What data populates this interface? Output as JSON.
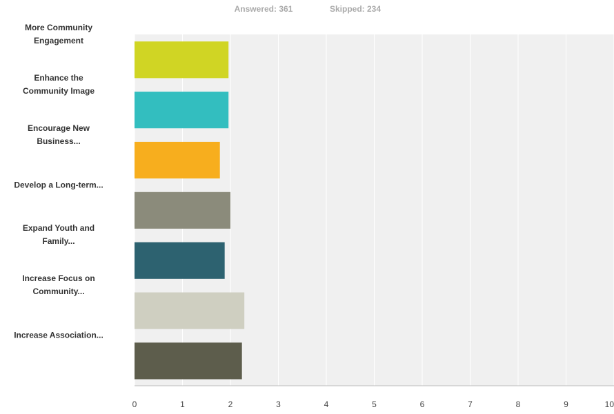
{
  "chart_data": {
    "type": "bar",
    "orientation": "horizontal",
    "annotations": [
      "Answered: 361",
      "Skipped: 234"
    ],
    "categories": [
      "More Community Engagement",
      "Enhance the Community Image",
      "Encourage New Business...",
      "Develop a Long-term...",
      "Expand Youth and Family...",
      "Increase Focus on Community...",
      "Increase Association..."
    ],
    "values": [
      1.96,
      1.96,
      1.78,
      2.0,
      1.88,
      2.29,
      2.24
    ],
    "colors": [
      "#d0d524",
      "#33bebf",
      "#f7ae1e",
      "#8b8b7b",
      "#2d6270",
      "#cfcfc1",
      "#5d5d4c"
    ],
    "xlim": [
      0,
      10
    ],
    "xticks": [
      0,
      1,
      2,
      3,
      4,
      5,
      6,
      7,
      8,
      9,
      10
    ],
    "grid": true
  }
}
